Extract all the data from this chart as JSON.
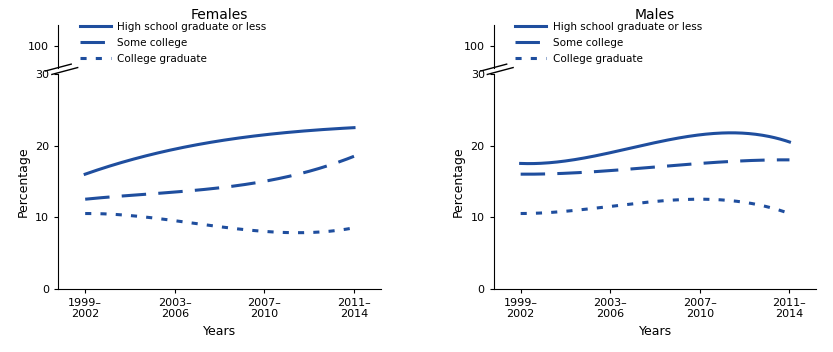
{
  "x_labels": [
    "1999–2002",
    "2003–2006",
    "2007–2010",
    "2011–2014"
  ],
  "x_positions": [
    0,
    1,
    2,
    3
  ],
  "females": {
    "title": "Females",
    "high_school": [
      16.0,
      19.5,
      21.5,
      22.5
    ],
    "some_college": [
      12.5,
      13.5,
      15.0,
      18.5
    ],
    "college_grad": [
      10.5,
      9.5,
      8.0,
      8.5
    ]
  },
  "males": {
    "title": "Males",
    "high_school": [
      17.5,
      19.0,
      21.5,
      20.5
    ],
    "some_college": [
      16.0,
      16.5,
      17.5,
      18.0
    ],
    "college_grad": [
      10.5,
      11.5,
      12.5,
      10.5
    ]
  },
  "line_color": "#1f4e9e",
  "ylabel": "Percentage",
  "xlabel": "Years",
  "lower_ylim": [
    0,
    30
  ],
  "upper_ylim": [
    95,
    105
  ],
  "lower_yticks": [
    0,
    10,
    20,
    30
  ],
  "upper_yticks": [
    100
  ],
  "legend_labels": [
    "High school graduate or less",
    "Some college",
    "College graduate"
  ],
  "linewidth": 2.2
}
